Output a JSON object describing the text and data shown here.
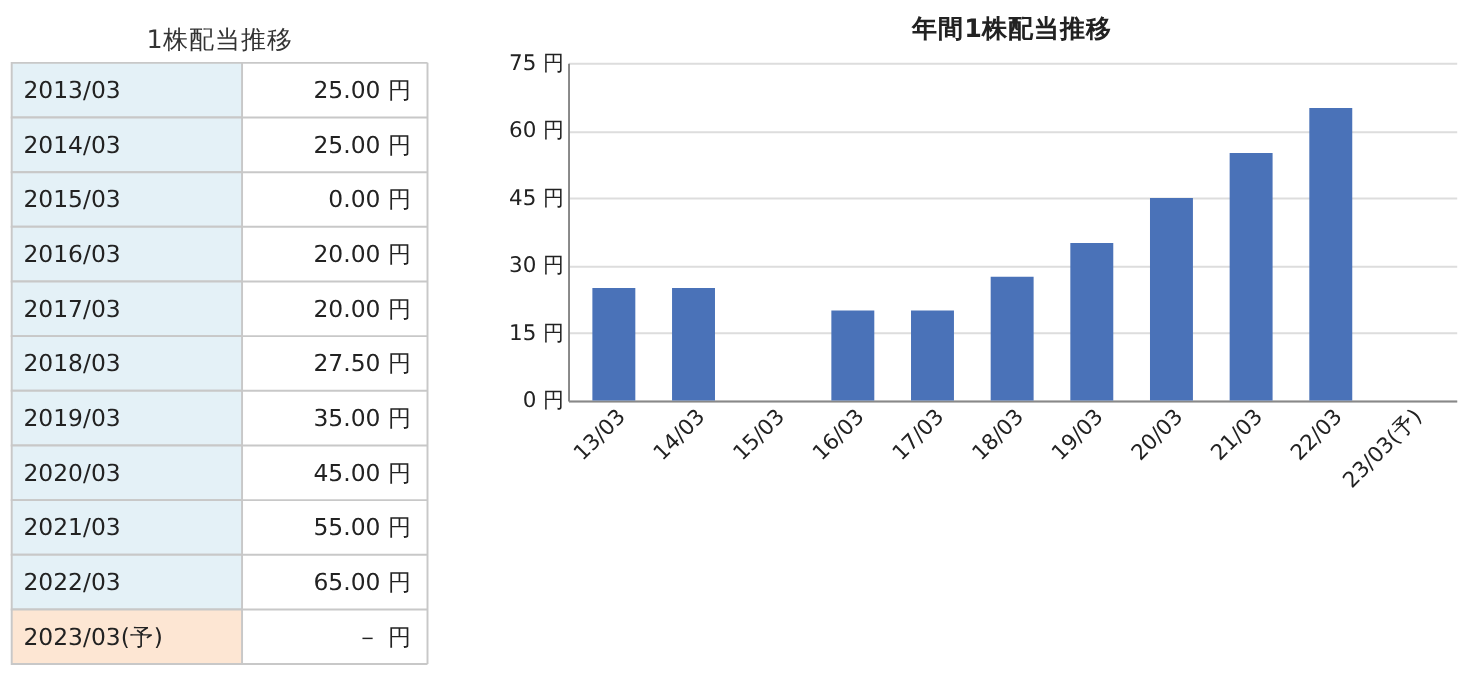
{
  "chart_data": [
    {
      "type": "other",
      "title": "1株配当推移",
      "categories": [
        "2013/03",
        "2014/03",
        "2015/03",
        "2016/03",
        "2017/03",
        "2018/03",
        "2019/03",
        "2020/03",
        "2021/03",
        "2022/03",
        "2023/03(予)"
      ],
      "values": [
        25,
        25,
        0,
        20,
        20,
        27.5,
        35,
        45,
        55,
        65,
        null
      ],
      "value_labels": [
        "25.00 円",
        "25.00 円",
        "0.00 円",
        "20.00 円",
        "20.00 円",
        "27.50 円",
        "35.00 円",
        "45.00 円",
        "55.00 円",
        "65.00 円",
        "－ 円"
      ],
      "colors": [
        "#e4f1f7",
        "#e4f1f7",
        "#e4f1f7",
        "#e4f1f7",
        "#e4f1f7",
        "#e4f1f7",
        "#e4f1f7",
        "#e4f1f7",
        "#e4f1f7",
        "#e4f1f7",
        "#fde6d3"
      ]
    },
    {
      "type": "bar",
      "title": "年間1株配当推移",
      "categories": [
        "13/03",
        "14/03",
        "15/03",
        "16/03",
        "17/03",
        "18/03",
        "19/03",
        "20/03",
        "21/03",
        "22/03",
        "23/03(予)"
      ],
      "values": [
        25,
        25,
        0,
        20,
        20,
        27.5,
        35,
        45,
        55,
        65,
        null
      ],
      "color": "#4a72b8",
      "ylim": [
        0,
        75
      ],
      "yticks": [
        {
          "value": 0,
          "label": "0 円"
        },
        {
          "value": 15,
          "label": "15 円"
        },
        {
          "value": 30,
          "label": "30 円"
        },
        {
          "value": 45,
          "label": "45 円"
        },
        {
          "value": 60,
          "label": "60 円"
        },
        {
          "value": 75,
          "label": "75 円"
        }
      ],
      "grid": "y"
    }
  ]
}
